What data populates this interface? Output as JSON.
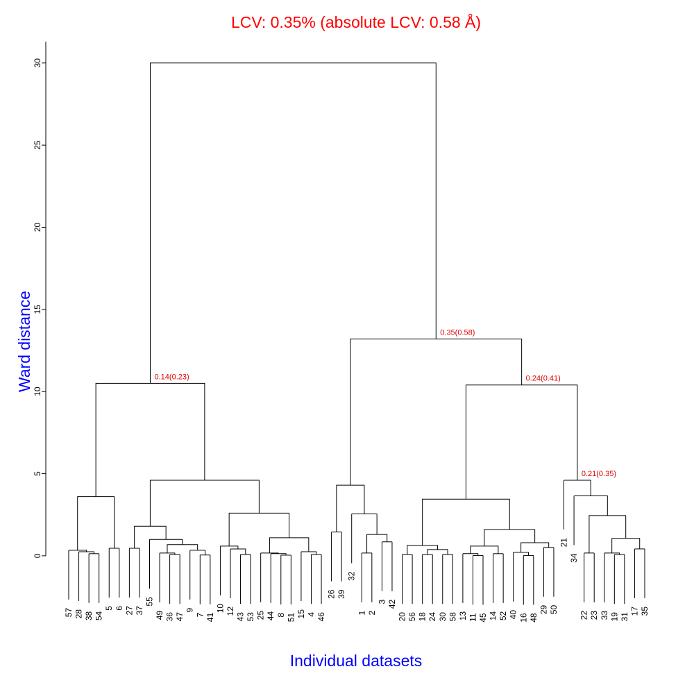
{
  "chart_data": {
    "type": "dendrogram",
    "title": "LCV: 0.35% (absolute LCV: 0.58 Å)",
    "x_label": "Individual datasets",
    "y_label": "Ward distance",
    "ylim": [
      -3.3,
      31.3
    ],
    "yticks": [
      0,
      5,
      10,
      15,
      20,
      25,
      30
    ],
    "tree": {
      "height": 30,
      "children": [
        {
          "height": 10.5,
          "label": "0.14(0.23)",
          "children": [
            {
              "height": 3.6,
              "children": [
                {
                  "height": 0.34,
                  "children": [
                    "57",
                    {
                      "height": 0.25,
                      "children": [
                        "28",
                        {
                          "height": 0.13,
                          "children": [
                            "38",
                            "54"
                          ]
                        }
                      ]
                    }
                  ]
                },
                {
                  "height": 0.46,
                  "children": [
                    "5",
                    "6"
                  ]
                }
              ]
            },
            {
              "height": 4.6,
              "children": [
                {
                  "height": 1.8,
                  "children": [
                    {
                      "height": 0.46,
                      "children": [
                        "27",
                        "37"
                      ]
                    },
                    {
                      "height": 1.0,
                      "children": [
                        "55",
                        {
                          "height": 0.68,
                          "children": [
                            {
                              "height": 0.17,
                              "children": [
                                "49",
                                {
                                  "height": 0.08,
                                  "children": [
                                    "36",
                                    "47"
                                  ]
                                }
                              ]
                            },
                            {
                              "height": 0.34,
                              "children": [
                                "9",
                                {
                                  "height": 0.05,
                                  "children": [
                                    "7",
                                    "41"
                                  ]
                                }
                              ]
                            }
                          ]
                        }
                      ]
                    }
                  ]
                },
                {
                  "height": 2.6,
                  "children": [
                    {
                      "height": 0.59,
                      "children": [
                        "10",
                        {
                          "height": 0.42,
                          "children": [
                            "12",
                            {
                              "height": 0.08,
                              "children": [
                                "43",
                                "53"
                              ]
                            }
                          ]
                        }
                      ]
                    },
                    {
                      "height": 1.1,
                      "children": [
                        {
                          "height": 0.17,
                          "children": [
                            "25",
                            {
                              "height": 0.13,
                              "children": [
                                "44",
                                {
                                  "height": 0.04,
                                  "children": [
                                    "8",
                                    "51"
                                  ]
                                }
                              ]
                            }
                          ]
                        },
                        {
                          "height": 0.25,
                          "children": [
                            "15",
                            {
                              "height": 0.08,
                              "children": [
                                "4",
                                "46"
                              ]
                            }
                          ]
                        }
                      ]
                    }
                  ]
                }
              ]
            }
          ]
        },
        {
          "height": 13.2,
          "label": "0.35(0.58)",
          "children": [
            {
              "height": 4.3,
              "children": [
                {
                  "height": 1.45,
                  "children": [
                    "26",
                    "39"
                  ]
                },
                {
                  "height": 2.55,
                  "children": [
                    "32",
                    {
                      "height": 1.3,
                      "children": [
                        {
                          "height": 0.17,
                          "children": [
                            "1",
                            "2"
                          ]
                        },
                        {
                          "height": 0.85,
                          "children": [
                            "3",
                            "42"
                          ]
                        }
                      ]
                    }
                  ]
                }
              ]
            },
            {
              "height": 10.4,
              "label": "0.24(0.41)",
              "children": [
                {
                  "height": 3.45,
                  "children": [
                    {
                      "height": 0.63,
                      "children": [
                        {
                          "height": 0.08,
                          "children": [
                            "20",
                            "56"
                          ]
                        },
                        {
                          "height": 0.38,
                          "children": [
                            {
                              "height": 0.08,
                              "children": [
                                "18",
                                "24"
                              ]
                            },
                            {
                              "height": 0.08,
                              "children": [
                                "30",
                                "58"
                              ]
                            }
                          ]
                        }
                      ]
                    },
                    {
                      "height": 1.6,
                      "children": [
                        {
                          "height": 0.59,
                          "children": [
                            {
                              "height": 0.13,
                              "children": [
                                "13",
                                {
                                  "height": 0.02,
                                  "children": [
                                    "11",
                                    "45"
                                  ]
                                }
                              ]
                            },
                            {
                              "height": 0.13,
                              "children": [
                                "14",
                                "52"
                              ]
                            }
                          ]
                        },
                        {
                          "height": 0.8,
                          "children": [
                            {
                              "height": 0.21,
                              "children": [
                                "40",
                                {
                                  "height": 0.02,
                                  "children": [
                                    "16",
                                    "48"
                                  ]
                                }
                              ]
                            },
                            {
                              "height": 0.51,
                              "children": [
                                "29",
                                "50"
                              ]
                            }
                          ]
                        }
                      ]
                    }
                  ]
                },
                {
                  "height": 4.6,
                  "label": "0.21(0.35)",
                  "children": [
                    "21",
                    {
                      "height": 3.65,
                      "children": [
                        "34",
                        {
                          "height": 2.45,
                          "children": [
                            {
                              "height": 0.17,
                              "children": [
                                "22",
                                "23"
                              ]
                            },
                            {
                              "height": 1.06,
                              "children": [
                                {
                                  "height": 0.17,
                                  "children": [
                                    "33",
                                    {
                                      "height": 0.08,
                                      "children": [
                                        "19",
                                        "31"
                                      ]
                                    }
                                  ]
                                },
                                {
                                  "height": 0.42,
                                  "children": [
                                    "17",
                                    "35"
                                  ]
                                }
                              ]
                            }
                          ]
                        }
                      ]
                    }
                  ]
                }
              ]
            }
          ]
        }
      ]
    }
  }
}
